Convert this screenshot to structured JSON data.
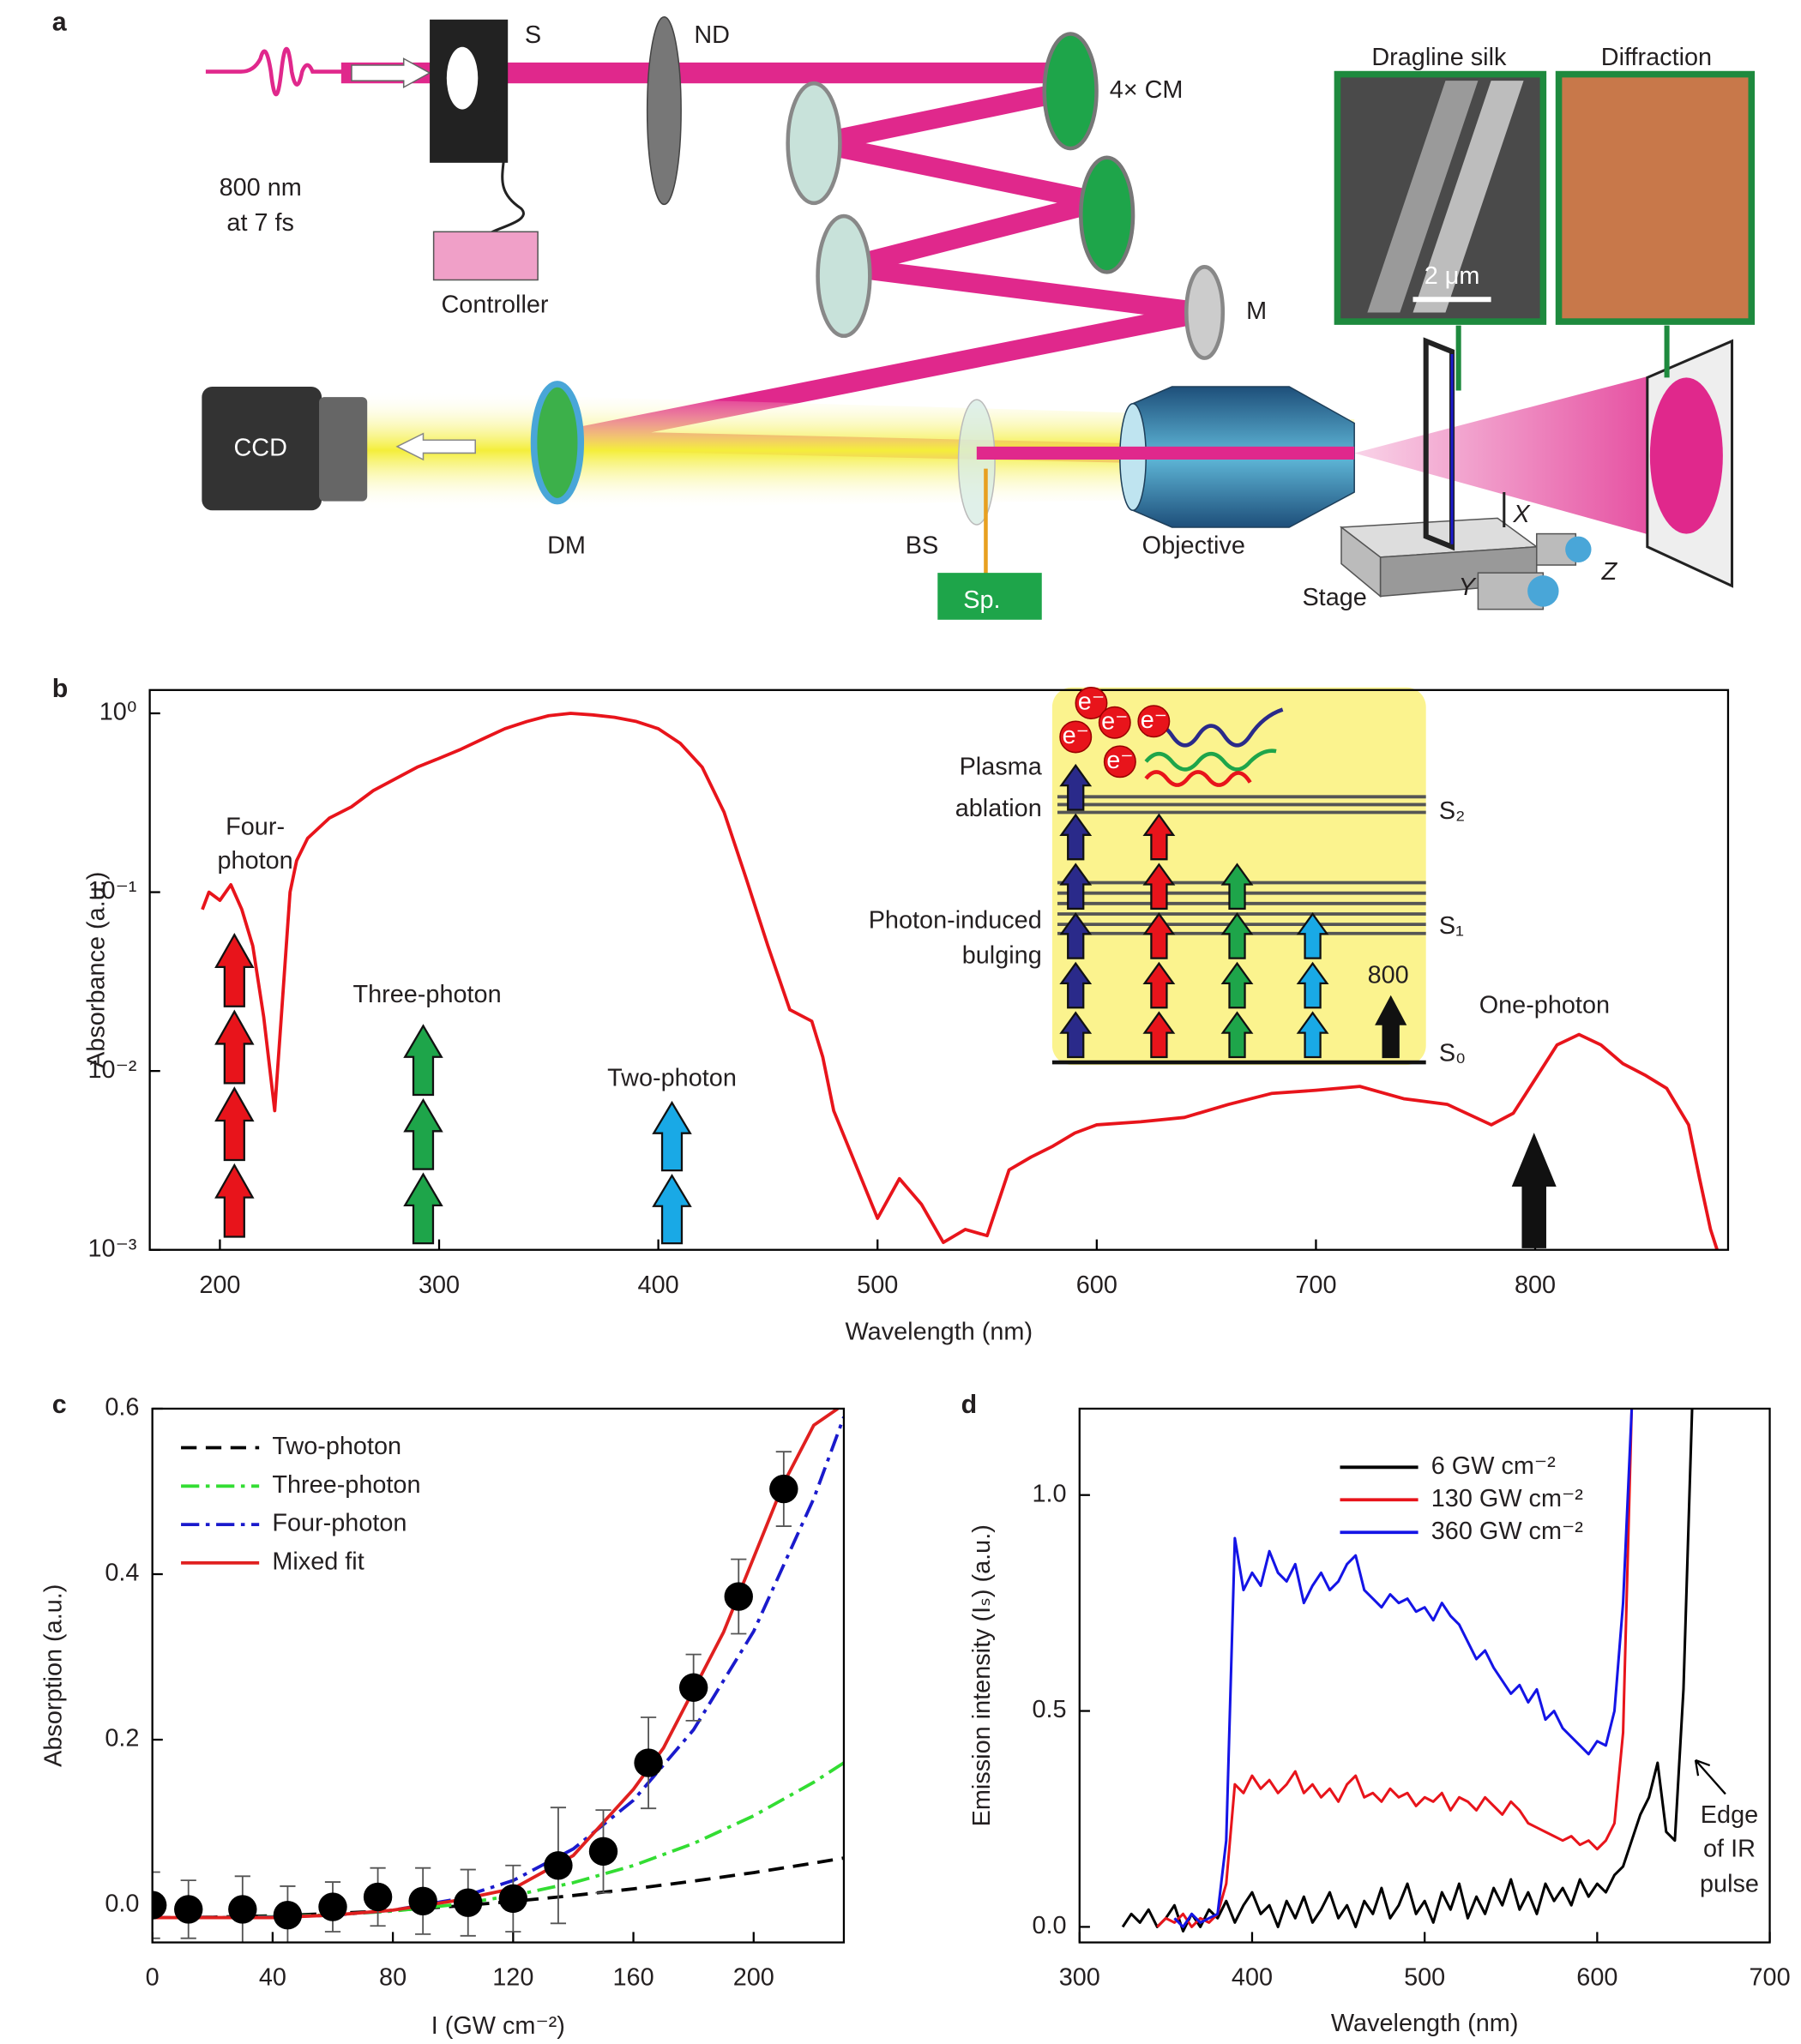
{
  "diagram": {
    "panel_label": "a",
    "labels": {
      "shutter": "S",
      "filter": "ND",
      "mirrors": "4× CM",
      "wavelength": "800 nm",
      "duration": "at 7 fs",
      "controller": "Controller",
      "mirror": "M",
      "silk": "Dragline silk",
      "diffraction": "Diffraction",
      "scale": "2 μm",
      "camera": "CCD",
      "dichroic": "DM",
      "splitter": "BS",
      "spectrometer": "Sp.",
      "objective": "Objective",
      "stage": "Stage",
      "axis_x": "X",
      "axis_y": "Y",
      "axis_z": "Z"
    }
  },
  "chart_data": [
    {
      "type": "line",
      "panel_label": "b",
      "xlabel": "Wavelength (nm)",
      "ylabel": "Absorbance (a.u.)",
      "log": true,
      "color": "#e8141b",
      "x": [
        192,
        195,
        200,
        205,
        210,
        215,
        220,
        225,
        228,
        232,
        235,
        240,
        250,
        260,
        270,
        280,
        290,
        300,
        310,
        320,
        330,
        340,
        350,
        360,
        370,
        380,
        390,
        400,
        410,
        420,
        430,
        440,
        450,
        460,
        470,
        475,
        480,
        490,
        500,
        510,
        520,
        530,
        540,
        550,
        560,
        570,
        580,
        590,
        600,
        620,
        640,
        660,
        680,
        700,
        720,
        740,
        760,
        780,
        790,
        800,
        810,
        820,
        830,
        840,
        850,
        860,
        870,
        875,
        880,
        883
      ],
      "values": [
        0.08,
        0.1,
        0.09,
        0.11,
        0.08,
        0.05,
        0.02,
        0.006,
        0.02,
        0.1,
        0.15,
        0.2,
        0.26,
        0.3,
        0.37,
        0.43,
        0.5,
        0.56,
        0.63,
        0.72,
        0.82,
        0.9,
        0.97,
        1.0,
        0.98,
        0.95,
        0.9,
        0.82,
        0.68,
        0.5,
        0.28,
        0.12,
        0.05,
        0.022,
        0.019,
        0.012,
        0.006,
        0.003,
        0.0015,
        0.0025,
        0.0018,
        0.0011,
        0.0013,
        0.0012,
        0.0028,
        0.0033,
        0.0038,
        0.0045,
        0.005,
        0.0052,
        0.0055,
        0.0065,
        0.0075,
        0.0078,
        0.0082,
        0.007,
        0.0065,
        0.005,
        0.0058,
        0.009,
        0.014,
        0.016,
        0.014,
        0.011,
        0.0095,
        0.008,
        0.005,
        0.0025,
        0.0013,
        0.001
      ],
      "xlim": [
        168,
        888
      ],
      "xticks": [
        200,
        300,
        400,
        500,
        600,
        700,
        800
      ],
      "ylim": [
        0.001,
        1.35
      ],
      "yticks": [
        {
          "value": 1,
          "label": "10⁰"
        },
        {
          "value": 0.1,
          "label": "10⁻¹"
        },
        {
          "value": 0.01,
          "label": "10⁻²"
        },
        {
          "value": 0.001,
          "label": "10⁻³"
        }
      ],
      "annotations": [
        "Four-",
        "photon",
        "Three-photon",
        "Two-photon",
        "One-photon"
      ],
      "inset": {
        "labels": [
          "Plasma",
          "ablation",
          "Photon-induced",
          "bulging"
        ],
        "levels": [
          "S₂",
          "S₁",
          "S₀"
        ],
        "wavelength": "800",
        "electron": "e⁻"
      }
    },
    {
      "type": "scatter",
      "panel_label": "c",
      "xlabel": "I (GW cm⁻²)",
      "ylabel": "Absorption (a.u.)",
      "xlim": [
        0,
        230
      ],
      "xticks": [
        0,
        40,
        80,
        120,
        160,
        200
      ],
      "ylim": [
        -0.045,
        0.6
      ],
      "yticks": [
        {
          "value": 0,
          "label": "0.0"
        },
        0.2,
        0.4,
        0.6
      ],
      "legend": "upper left",
      "series": [
        {
          "name": "Two-photon",
          "color": "#000000",
          "dash": "dashed",
          "x": [
            0,
            20,
            40,
            60,
            80,
            100,
            120,
            140,
            160,
            180,
            200,
            220,
            230
          ],
          "values": [
            -0.015,
            -0.0145,
            -0.0128,
            -0.0101,
            -0.0063,
            -0.0014,
            0.0046,
            0.0117,
            0.0198,
            0.0291,
            0.0394,
            0.0509,
            0.057
          ]
        },
        {
          "name": "Three-photon",
          "color": "#33dd33",
          "dash": "dashdot",
          "x": [
            0,
            20,
            40,
            60,
            80,
            100,
            120,
            140,
            160,
            180,
            200,
            220,
            230
          ],
          "values": [
            -0.015,
            -0.0149,
            -0.014,
            -0.0117,
            -0.0071,
            0.0004,
            0.0116,
            0.0272,
            0.0479,
            0.0746,
            0.108,
            0.1486,
            0.172
          ]
        },
        {
          "name": "Four-photon",
          "color": "#1a1acc",
          "dash": "dashdot",
          "x": [
            0,
            20,
            40,
            60,
            80,
            100,
            120,
            140,
            160,
            180,
            200,
            220,
            230
          ],
          "values": [
            -0.015,
            -0.015,
            -0.0144,
            -0.0122,
            -0.0061,
            0.0066,
            0.0298,
            0.068,
            0.1267,
            0.212,
            0.3309,
            0.4914,
            0.59
          ]
        },
        {
          "name": "Mixed fit",
          "color": "#e0201f",
          "dash": "solid",
          "x": [
            0,
            40,
            60,
            80,
            100,
            120,
            140,
            160,
            170,
            180,
            190,
            200,
            210,
            220,
            228
          ],
          "values": [
            -0.015,
            -0.015,
            -0.012,
            -0.006,
            0.005,
            0.02,
            0.06,
            0.14,
            0.19,
            0.26,
            0.33,
            0.42,
            0.51,
            0.58,
            0.6
          ]
        }
      ],
      "points": {
        "color": "#000000",
        "x": [
          0,
          12,
          30,
          45,
          60,
          75,
          90,
          105,
          120,
          135,
          150,
          165,
          180,
          195,
          210
        ],
        "values": [
          0.0,
          -0.005,
          -0.005,
          -0.012,
          -0.002,
          0.01,
          0.005,
          0.003,
          0.008,
          0.048,
          0.065,
          0.172,
          0.263,
          0.373,
          0.503
        ],
        "errors": [
          0.04,
          0.035,
          0.04,
          0.035,
          0.03,
          0.035,
          0.04,
          0.04,
          0.04,
          0.07,
          0.05,
          0.055,
          0.04,
          0.045,
          0.045
        ]
      }
    },
    {
      "type": "line",
      "panel_label": "d",
      "xlabel": "Wavelength (nm)",
      "ylabel": "Emission intensity (Iₛ) (a.u.)",
      "xlim": [
        300,
        700
      ],
      "xticks": [
        300,
        400,
        500,
        600,
        700
      ],
      "ylim": [
        -0.036,
        1.2
      ],
      "yticks": [
        {
          "value": 0,
          "label": "0.0"
        },
        0.5,
        {
          "value": 1,
          "label": "1.0"
        }
      ],
      "legend": "upper right",
      "annotations": [
        "Edge",
        "of IR",
        "pulse"
      ],
      "x": [
        325,
        330,
        335,
        340,
        345,
        350,
        355,
        360,
        365,
        370,
        375,
        380,
        385,
        390,
        395,
        400,
        405,
        410,
        415,
        420,
        425,
        430,
        435,
        440,
        445,
        450,
        455,
        460,
        465,
        470,
        475,
        480,
        485,
        490,
        495,
        500,
        505,
        510,
        515,
        520,
        525,
        530,
        535,
        540,
        545,
        550,
        555,
        560,
        565,
        570,
        575,
        580,
        585,
        590,
        595,
        600,
        605,
        610,
        615,
        620,
        625,
        630,
        635,
        640,
        645,
        650,
        655
      ],
      "series": [
        {
          "name": "6 GW cm⁻²",
          "color": "#000000",
          "values": [
            0.0,
            0.03,
            0.01,
            0.04,
            0.0,
            0.02,
            0.05,
            -0.01,
            0.03,
            0.0,
            0.04,
            0.02,
            0.06,
            0.01,
            0.05,
            0.08,
            0.03,
            0.05,
            0.0,
            0.06,
            0.02,
            0.07,
            0.01,
            0.04,
            0.08,
            0.02,
            0.05,
            0.0,
            0.06,
            0.03,
            0.09,
            0.02,
            0.05,
            0.1,
            0.03,
            0.06,
            0.01,
            0.08,
            0.04,
            0.1,
            0.02,
            0.07,
            0.03,
            0.09,
            0.05,
            0.11,
            0.04,
            0.08,
            0.03,
            0.1,
            0.06,
            0.09,
            0.05,
            0.11,
            0.07,
            0.1,
            0.08,
            0.12,
            0.14,
            0.2,
            0.26,
            0.3,
            0.38,
            0.22,
            0.2,
            0.55,
            1.2
          ]
        },
        {
          "name": "130 GW cm⁻²",
          "color": "#e8141b",
          "values": [
            null,
            null,
            null,
            null,
            0.0,
            0.02,
            0.01,
            0.03,
            0.0,
            0.02,
            0.01,
            0.03,
            0.1,
            0.33,
            0.31,
            0.35,
            0.32,
            0.34,
            0.31,
            0.33,
            0.36,
            0.31,
            0.33,
            0.3,
            0.32,
            0.29,
            0.33,
            0.35,
            0.3,
            0.31,
            0.29,
            0.32,
            0.3,
            0.31,
            0.28,
            0.3,
            0.29,
            0.31,
            0.27,
            0.3,
            0.29,
            0.27,
            0.3,
            0.28,
            0.26,
            0.29,
            0.27,
            0.24,
            0.23,
            0.22,
            0.21,
            0.2,
            0.21,
            0.19,
            0.2,
            0.18,
            0.2,
            0.24,
            0.45,
            1.2,
            null,
            null,
            null,
            null,
            null,
            null,
            null
          ]
        },
        {
          "name": "360 GW cm⁻²",
          "color": "#1414e6",
          "values": [
            null,
            null,
            null,
            null,
            null,
            null,
            0.02,
            0.0,
            0.03,
            0.01,
            0.02,
            0.03,
            0.2,
            0.9,
            0.78,
            0.82,
            0.79,
            0.87,
            0.82,
            0.8,
            0.84,
            0.75,
            0.79,
            0.82,
            0.78,
            0.8,
            0.84,
            0.86,
            0.78,
            0.76,
            0.74,
            0.77,
            0.75,
            0.76,
            0.73,
            0.74,
            0.71,
            0.75,
            0.72,
            0.7,
            0.66,
            0.62,
            0.64,
            0.6,
            0.57,
            0.54,
            0.56,
            0.52,
            0.55,
            0.48,
            0.5,
            0.46,
            0.44,
            0.42,
            0.4,
            0.43,
            0.42,
            0.5,
            0.75,
            1.2,
            null,
            null,
            null,
            null,
            null,
            null,
            null
          ]
        }
      ]
    }
  ]
}
